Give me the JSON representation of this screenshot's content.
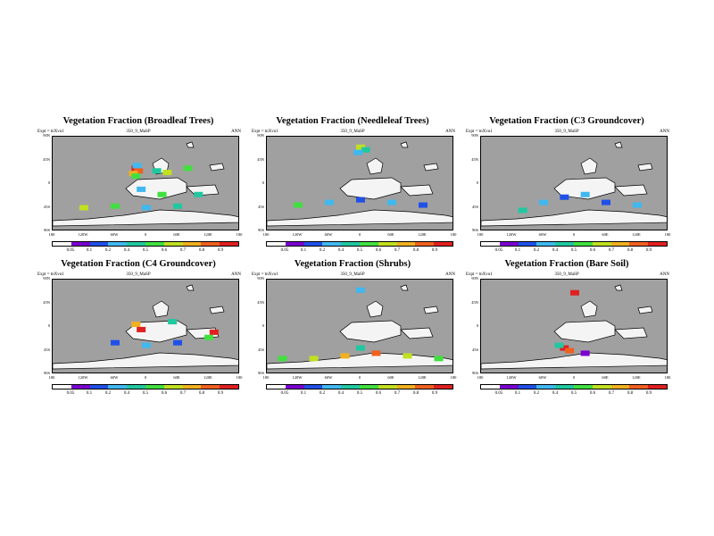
{
  "exp_label": "Expt = tnXvu1",
  "case_label": "350_9_MaSP",
  "season": "ANN",
  "lat_labels": [
    "90N",
    "45N",
    "0",
    "45S",
    "90S"
  ],
  "lon_labels": [
    "180",
    "120W",
    "60W",
    "0",
    "60E",
    "120E",
    "180"
  ],
  "colorbar_labels": [
    "0.05",
    "0.1",
    "0.2",
    "0.4",
    "0.5",
    "0.6",
    "0.7",
    "0.8",
    "0.9"
  ],
  "palette": {
    "ocean": "#a0a0a0",
    "outline": "#000000",
    "colors": [
      "#ffffff",
      "#7a00d0",
      "#2050e8",
      "#40b8f0",
      "#20c8a0",
      "#40e040",
      "#c0e020",
      "#f0b020",
      "#f06020",
      "#e02020"
    ]
  },
  "chart_data": [
    {
      "type": "heatmap",
      "title": "Vegetation Fraction (Broadleaf Trees)",
      "x": "longitude",
      "y": "latitude",
      "xlim": [
        -180,
        180
      ],
      "ylim": [
        -90,
        90
      ],
      "cells": [
        {
          "lon": -20,
          "lat": 30,
          "value": 0.9
        },
        {
          "lon": -15,
          "lat": 25,
          "value": 0.8
        },
        {
          "lon": -25,
          "lat": 20,
          "value": 0.7
        },
        {
          "lon": -20,
          "lat": 15,
          "value": 0.5
        },
        {
          "lon": -18,
          "lat": 35,
          "value": 0.3
        },
        {
          "lon": 20,
          "lat": 25,
          "value": 0.4
        },
        {
          "lon": 40,
          "lat": 22,
          "value": 0.6
        },
        {
          "lon": 80,
          "lat": 30,
          "value": 0.5
        },
        {
          "lon": -10,
          "lat": -10,
          "value": 0.3
        },
        {
          "lon": 30,
          "lat": -20,
          "value": 0.5
        },
        {
          "lon": 100,
          "lat": -20,
          "value": 0.4
        },
        {
          "lon": -120,
          "lat": -45,
          "value": 0.6
        },
        {
          "lon": -60,
          "lat": -42,
          "value": 0.5
        },
        {
          "lon": 0,
          "lat": -45,
          "value": 0.2
        },
        {
          "lon": 60,
          "lat": -42,
          "value": 0.4
        }
      ]
    },
    {
      "type": "heatmap",
      "title": "Vegetation Fraction (Needleleaf Trees)",
      "x": "longitude",
      "y": "latitude",
      "xlim": [
        -180,
        180
      ],
      "ylim": [
        -90,
        90
      ],
      "cells": [
        {
          "lon": 0,
          "lat": 70,
          "value": 0.6
        },
        {
          "lon": 10,
          "lat": 65,
          "value": 0.4
        },
        {
          "lon": -5,
          "lat": 60,
          "value": 0.2
        },
        {
          "lon": -120,
          "lat": -40,
          "value": 0.5
        },
        {
          "lon": -60,
          "lat": -35,
          "value": 0.3
        },
        {
          "lon": 0,
          "lat": -30,
          "value": 0.1
        },
        {
          "lon": 60,
          "lat": -35,
          "value": 0.2
        },
        {
          "lon": 120,
          "lat": -40,
          "value": 0.1
        }
      ]
    },
    {
      "type": "heatmap",
      "title": "Vegetation Fraction (C3 Groundcover)",
      "x": "longitude",
      "y": "latitude",
      "xlim": [
        -180,
        180
      ],
      "ylim": [
        -90,
        90
      ],
      "cells": [
        {
          "lon": -60,
          "lat": -35,
          "value": 0.2
        },
        {
          "lon": -20,
          "lat": -25,
          "value": 0.1
        },
        {
          "lon": 20,
          "lat": -20,
          "value": 0.2
        },
        {
          "lon": 60,
          "lat": -35,
          "value": 0.1
        },
        {
          "lon": 120,
          "lat": -40,
          "value": 0.2
        },
        {
          "lon": -100,
          "lat": -50,
          "value": 0.4
        }
      ]
    },
    {
      "type": "heatmap",
      "title": "Vegetation Fraction (C4 Groundcover)",
      "x": "longitude",
      "y": "latitude",
      "xlim": [
        -180,
        180
      ],
      "ylim": [
        -90,
        90
      ],
      "cells": [
        {
          "lon": -20,
          "lat": 5,
          "value": 0.7
        },
        {
          "lon": -10,
          "lat": -5,
          "value": 0.9
        },
        {
          "lon": 130,
          "lat": -10,
          "value": 0.9
        },
        {
          "lon": 120,
          "lat": -20,
          "value": 0.5
        },
        {
          "lon": -60,
          "lat": -30,
          "value": 0.1
        },
        {
          "lon": 0,
          "lat": -35,
          "value": 0.2
        },
        {
          "lon": 60,
          "lat": -30,
          "value": 0.1
        },
        {
          "lon": 50,
          "lat": 10,
          "value": 0.4
        }
      ]
    },
    {
      "type": "heatmap",
      "title": "Vegetation Fraction (Shrubs)",
      "x": "longitude",
      "y": "latitude",
      "xlim": [
        -180,
        180
      ],
      "ylim": [
        -90,
        90
      ],
      "cells": [
        {
          "lon": -150,
          "lat": -60,
          "value": 0.5
        },
        {
          "lon": -90,
          "lat": -60,
          "value": 0.6
        },
        {
          "lon": -30,
          "lat": -55,
          "value": 0.7
        },
        {
          "lon": 30,
          "lat": -50,
          "value": 0.8
        },
        {
          "lon": 90,
          "lat": -55,
          "value": 0.6
        },
        {
          "lon": 150,
          "lat": -60,
          "value": 0.5
        },
        {
          "lon": 0,
          "lat": -40,
          "value": 0.4
        },
        {
          "lon": 0,
          "lat": 70,
          "value": 0.3
        }
      ]
    },
    {
      "type": "heatmap",
      "title": "Vegetation Fraction (Bare Soil)",
      "x": "longitude",
      "y": "latitude",
      "xlim": [
        -180,
        180
      ],
      "ylim": [
        -90,
        90
      ],
      "cells": [
        {
          "lon": -20,
          "lat": -40,
          "value": 0.9
        },
        {
          "lon": -10,
          "lat": -45,
          "value": 0.8
        },
        {
          "lon": 0,
          "lat": 65,
          "value": 0.9
        },
        {
          "lon": -30,
          "lat": -35,
          "value": 0.4
        },
        {
          "lon": 20,
          "lat": -50,
          "value": 0.05
        }
      ]
    }
  ]
}
